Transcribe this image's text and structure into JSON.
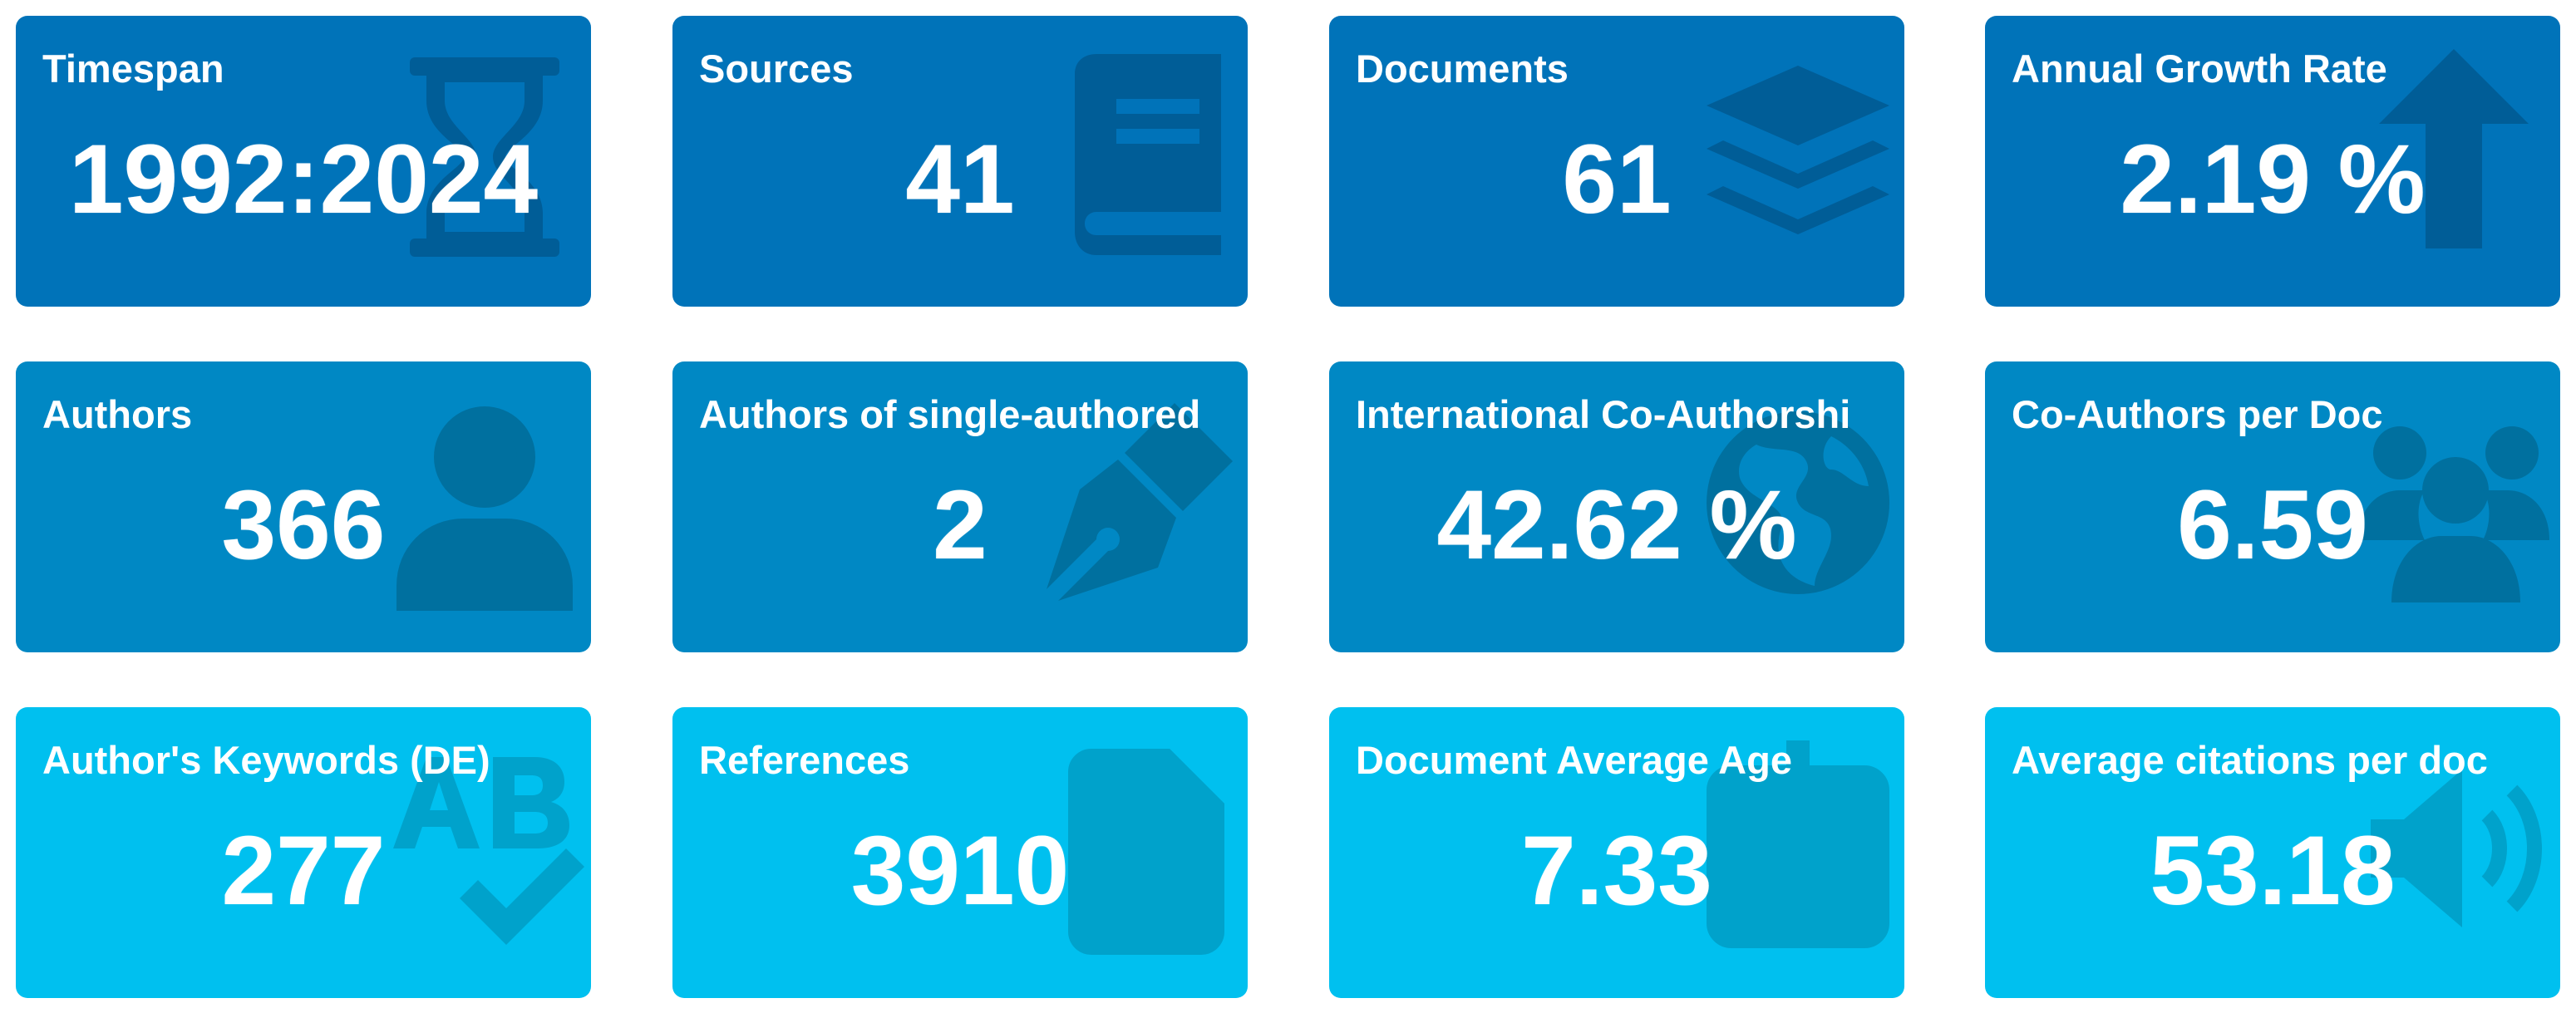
{
  "colors": {
    "row1_bg": "#0073b9",
    "row2_bg": "#0088c4",
    "row3_bg": "#00c0ef",
    "text": "#ffffff"
  },
  "boxes": [
    {
      "label": "Timespan",
      "value": "1992:2024",
      "icon": "hourglass-icon"
    },
    {
      "label": "Sources",
      "value": "41",
      "icon": "book-icon"
    },
    {
      "label": "Documents",
      "value": "61",
      "icon": "layers-icon"
    },
    {
      "label": "Annual Growth Rate",
      "value": "2.19 %",
      "icon": "arrow-up-icon"
    },
    {
      "label": "Authors",
      "value": "366",
      "icon": "user-icon"
    },
    {
      "label": "Authors of single-authored",
      "value": "2",
      "icon": "pen-nib-icon"
    },
    {
      "label": "International Co-Authorshi",
      "value": "42.62 %",
      "icon": "globe-icon"
    },
    {
      "label": "Co-Authors per Doc",
      "value": "6.59",
      "icon": "users-icon"
    },
    {
      "label": "Author's Keywords (DE)",
      "value": "277",
      "icon": "spell-check-icon"
    },
    {
      "label": "References",
      "value": "3910",
      "icon": "file-icon"
    },
    {
      "label": "Document Average Age",
      "value": "7.33",
      "icon": "calendar-icon"
    },
    {
      "label": "Average citations per doc",
      "value": "53.18",
      "icon": "volume-icon"
    }
  ]
}
